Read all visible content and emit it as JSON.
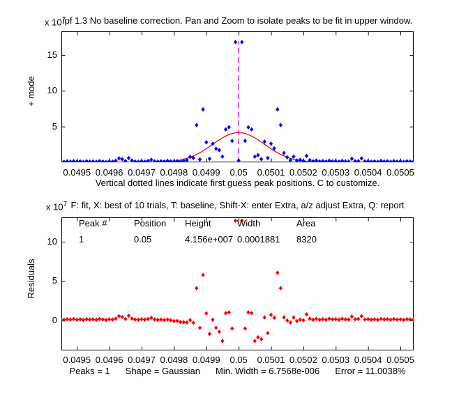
{
  "figure": {
    "background": "#ffffff"
  },
  "colors": {
    "signal_points": "#0000ff",
    "fit_curve": "#ff0000",
    "residual_points": "#ff0000",
    "first_guess_line": "#ff00ff",
    "axis": "#000000"
  },
  "upper_plot": {
    "title": "ipf 1.3 No baseline correction. Pan and Zoom to isolate peaks to be fit in upper window.",
    "y_multiplier_base": "x 10",
    "y_multiplier_exp": "7",
    "ylabel": "+ mode",
    "xlabel": "Vertical dotted lines indicate first guess peak positions. C to customize.",
    "yticks": [
      "5",
      "10",
      "15"
    ],
    "xticks": [
      "0.0495",
      "0.0496",
      "0.0497",
      "0.0498",
      "0.0499",
      "0.05",
      "0.0501",
      "0.0502",
      "0.0503",
      "0.0504",
      "0.0505"
    ]
  },
  "lower_plot": {
    "title": "F: fit, X: best of 10 trials, T: baseline, Shift-X: enter Extra, a/z adjust Extra, Q: report",
    "y_multiplier_base": "x 10",
    "y_multiplier_exp": "7",
    "ylabel": "Residuals",
    "yticks": [
      "0",
      "5",
      "10"
    ],
    "xticks": [
      "0.0495",
      "0.0496",
      "0.0497",
      "0.0498",
      "0.0499",
      "0.05",
      "0.0501",
      "0.0502",
      "0.0503",
      "0.0504",
      "0.0505"
    ],
    "table": {
      "headers": [
        "Peak #",
        "Position",
        "Height",
        "Width",
        "Area"
      ],
      "rows": [
        [
          "1",
          "0.05",
          "4.156e+007",
          "0.0001881",
          "8320"
        ]
      ]
    },
    "footer": [
      "Peaks = 1",
      "Shape = Gaussian",
      "Min. Width = 6.7568e-006",
      "Error = 11.0038%"
    ]
  },
  "chart_data": [
    {
      "type": "scatter",
      "id": "signal-plot",
      "title": "ipf 1.3 No baseline correction. Pan and Zoom to isolate peaks to be fit in upper window.",
      "xlabel": "Vertical dotted lines indicate first guess peak positions. C to customize.",
      "ylabel": "+ mode",
      "y_unit": "1e7",
      "xlim": [
        0.049452,
        0.050541
      ],
      "ylim": [
        0,
        18.3
      ],
      "xtick_values": [
        0.0495,
        0.0496,
        0.0497,
        0.0498,
        0.0499,
        0.05,
        0.0501,
        0.0502,
        0.0503,
        0.0504,
        0.0505
      ],
      "ytick_values": [
        5,
        10,
        15
      ],
      "x_start": 0.04945,
      "x_step": 1e-05,
      "signal_y": [
        0.12,
        0.08,
        0.15,
        0.1,
        0.18,
        0.09,
        0.14,
        0.07,
        0.16,
        0.11,
        0.13,
        0.08,
        0.17,
        0.12,
        0.06,
        0.14,
        0.1,
        0.22,
        0.55,
        0.45,
        0.18,
        0.6,
        0.25,
        0.12,
        0.09,
        0.15,
        0.11,
        0.19,
        0.35,
        0.14,
        0.1,
        0.16,
        0.12,
        0.2,
        0.15,
        0.11,
        0.18,
        0.13,
        0.22,
        0.3,
        0.75,
        0.6,
        5.2,
        0.4,
        7.4,
        2.8,
        0.5,
        2.6,
        1.9,
        1.7,
        0.8,
        4.6,
        4.9,
        3.0,
        16.8,
        0.25,
        16.8,
        3.0,
        4.9,
        4.6,
        0.8,
        1.0,
        0.45,
        2.9,
        0.6,
        2.6,
        1.95,
        7.4,
        5.2,
        1.3,
        0.7,
        0.3,
        0.8,
        0.25,
        0.35,
        0.2,
        0.9,
        0.3,
        0.15,
        0.25,
        0.12,
        0.18,
        0.1,
        0.22,
        0.14,
        0.16,
        0.09,
        0.2,
        0.13,
        0.11,
        0.5,
        0.15,
        0.18,
        0.55,
        0.12,
        0.16,
        0.1,
        0.14,
        0.08,
        0.19,
        0.12,
        0.15,
        0.09,
        0.17,
        0.11,
        0.14,
        0.08,
        0.16,
        0.12,
        0.1,
        0.15,
        0.09
      ],
      "marker": {
        "shape": "diamond",
        "color": "#0000ff"
      },
      "fit": {
        "shape": "Gaussian",
        "height": 4.156,
        "center": 0.05,
        "fwhm": 0.0001881,
        "color": "#ff0000"
      },
      "first_guess_vline": {
        "x": 0.05,
        "y_from": 0,
        "y_to": 16.9,
        "style": "dashed",
        "color": "#ff00ff"
      }
    },
    {
      "type": "scatter",
      "id": "residuals-plot",
      "title": "F: fit, X: best of 10 trials, T: baseline, Shift-X: enter Extra, a/z adjust Extra, Q: report",
      "ylabel": "Residuals",
      "y_unit": "1e7",
      "xlim": [
        0.049452,
        0.050541
      ],
      "ylim": [
        -3.81,
        13.1
      ],
      "xtick_values": [
        0.0495,
        0.0496,
        0.0497,
        0.0498,
        0.0499,
        0.05,
        0.0501,
        0.0502,
        0.0503,
        0.0504,
        0.0505
      ],
      "ytick_values": [
        0,
        5,
        10
      ],
      "points_definition": "residual = signal_y - Gaussian(height 4.156, center 0.05, fwhm 0.0001881), same x grid as signal-plot",
      "marker": {
        "shape": "diamond",
        "color": "#ff0000"
      }
    }
  ]
}
